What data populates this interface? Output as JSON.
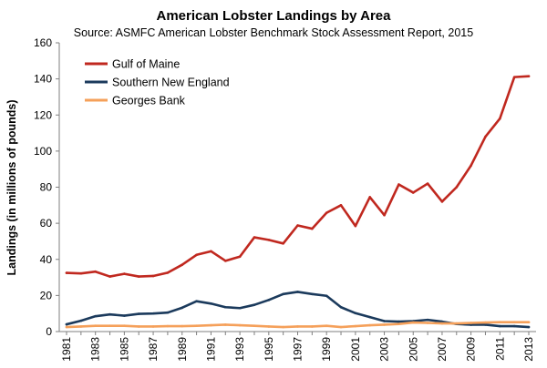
{
  "chart_data": {
    "type": "line",
    "title": "American Lobster Landings by Area",
    "subtitle": "Source: ASMFC American Lobster Benchmark Stock Assessment Report, 2015",
    "xlabel": "",
    "ylabel": "Landings (in millions of pounds)",
    "ylim": [
      0,
      160
    ],
    "yticks": [
      "0",
      "20",
      "40",
      "60",
      "80",
      "100",
      "120",
      "140",
      "160"
    ],
    "x": [
      1981,
      1982,
      1983,
      1984,
      1985,
      1986,
      1987,
      1988,
      1989,
      1990,
      1991,
      1992,
      1993,
      1994,
      1995,
      1996,
      1997,
      1998,
      1999,
      2000,
      2001,
      2002,
      2003,
      2004,
      2005,
      2006,
      2007,
      2008,
      2009,
      2010,
      2011,
      2012,
      2013
    ],
    "xticks": [
      "1981",
      "1983",
      "1985",
      "1987",
      "1989",
      "1991",
      "1993",
      "1995",
      "1997",
      "1999",
      "2001",
      "2003",
      "2005",
      "2007",
      "2009",
      "2011",
      "2013"
    ],
    "legend_position": "top-left",
    "series": [
      {
        "name": "Gulf of Maine",
        "color": "#c0281f",
        "values": [
          32.5,
          32.2,
          33.2,
          30.5,
          32.0,
          30.5,
          30.8,
          32.6,
          37.0,
          42.5,
          44.5,
          39.2,
          41.5,
          52.2,
          50.8,
          48.8,
          58.8,
          57.0,
          65.8,
          70.0,
          58.5,
          74.5,
          64.5,
          81.5,
          77.0,
          82.0,
          72.0,
          80.0,
          92.0,
          108.0,
          118.0,
          141.0,
          141.5
        ]
      },
      {
        "name": "Southern New England",
        "color": "#1b3a5c",
        "values": [
          4.0,
          6.0,
          8.5,
          9.5,
          8.8,
          9.8,
          10.0,
          10.5,
          13.2,
          16.8,
          15.5,
          13.5,
          13.0,
          14.8,
          17.5,
          20.8,
          22.0,
          20.8,
          19.8,
          13.5,
          10.2,
          8.0,
          5.8,
          5.5,
          5.8,
          6.5,
          5.5,
          4.2,
          3.8,
          3.8,
          3.0,
          3.0,
          2.5
        ]
      },
      {
        "name": "Georges Bank",
        "color": "#f5a05a",
        "values": [
          2.5,
          2.8,
          3.2,
          3.2,
          3.2,
          2.8,
          2.8,
          3.0,
          3.0,
          3.2,
          3.5,
          3.8,
          3.5,
          3.2,
          2.8,
          2.5,
          2.8,
          2.8,
          3.2,
          2.5,
          3.0,
          3.5,
          3.8,
          4.2,
          5.0,
          4.8,
          4.5,
          4.5,
          4.8,
          5.0,
          5.2,
          5.2,
          5.2
        ]
      }
    ]
  }
}
